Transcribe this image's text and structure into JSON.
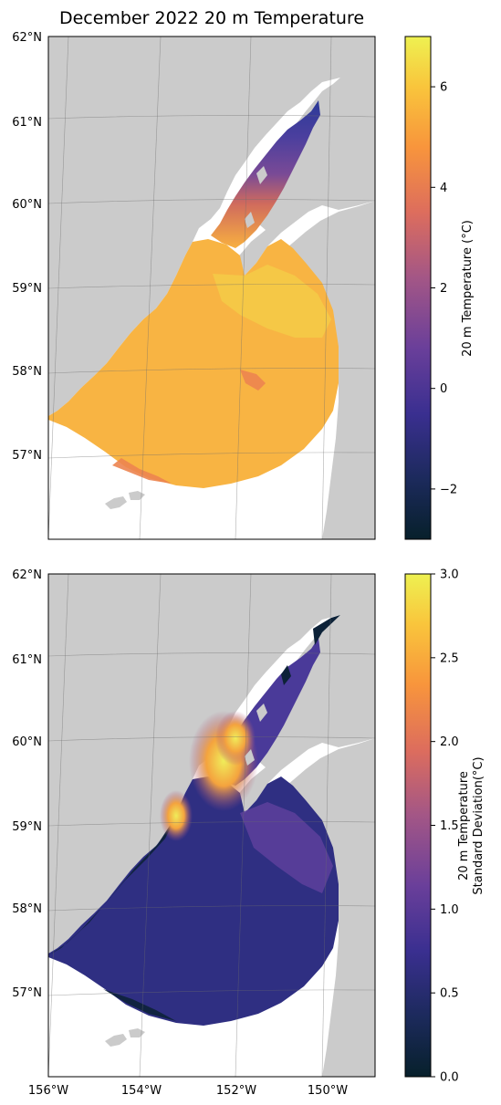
{
  "title": "December 2022 20 m Temperature",
  "lat_labels": [
    "62°N",
    "61°N",
    "60°N",
    "59°N",
    "58°N",
    "57°N"
  ],
  "lon_labels": [
    "156°W",
    "154°W",
    "152°W",
    "150°W"
  ],
  "top_panel": {
    "colorbar_label": "20 m Temperature (°C)",
    "colorbar_ticks": [
      "6",
      "4",
      "2",
      "0",
      "−2"
    ],
    "colorbar_range": [
      -3,
      7
    ]
  },
  "bottom_panel": {
    "colorbar_label_line1": "20 m Temperature",
    "colorbar_label_line2": "Standard Deviation(°C)",
    "colorbar_ticks": [
      "3.0",
      "2.5",
      "2.0",
      "1.5",
      "1.0",
      "0.5",
      "0.0"
    ],
    "colorbar_range": [
      0,
      3
    ]
  },
  "colors": {
    "land": "#cbcbcb",
    "ocean": "#ffffff",
    "colormap_stops": [
      "#07202b",
      "#1c2a5c",
      "#3a2f90",
      "#6a3f9a",
      "#a35686",
      "#dd6d5d",
      "#f8953c",
      "#f9c53c",
      "#eef151"
    ]
  }
}
